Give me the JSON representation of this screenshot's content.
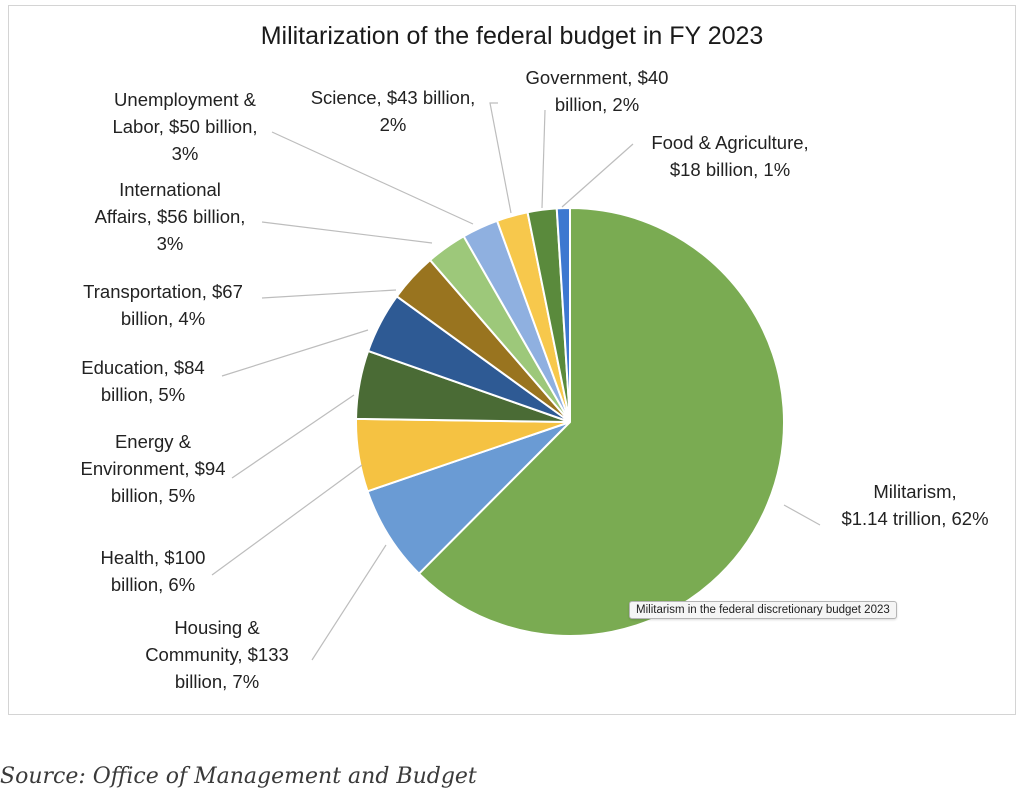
{
  "chart_data": {
    "type": "pie",
    "title": "Militarization of the federal budget in FY 2023",
    "slices": [
      {
        "name": "Militarism",
        "amount": "$1.14 trillion",
        "percent": 62,
        "value": 1140,
        "color": "#7aab52",
        "label_lines": [
          "Militarism,",
          "$1.14 trillion, 62%"
        ]
      },
      {
        "name": "Housing & Community",
        "amount": "$133 billion",
        "percent": 7,
        "value": 133,
        "color": "#6a9bd4",
        "label_lines": [
          "Housing &",
          "Community, $133",
          "billion, 7%"
        ]
      },
      {
        "name": "Health",
        "amount": "$100 billion",
        "percent": 6,
        "value": 100,
        "color": "#f5c242",
        "label_lines": [
          "Health, $100",
          "billion, 6%"
        ]
      },
      {
        "name": "Energy & Environment",
        "amount": "$94 billion",
        "percent": 5,
        "value": 94,
        "color": "#4a6b35",
        "label_lines": [
          "Energy &",
          "Environment, $94",
          "billion, 5%"
        ]
      },
      {
        "name": "Education",
        "amount": "$84 billion",
        "percent": 5,
        "value": 84,
        "color": "#2e5a94",
        "label_lines": [
          "Education, $84",
          "billion, 5%"
        ]
      },
      {
        "name": "Transportation",
        "amount": "$67 billion",
        "percent": 4,
        "value": 67,
        "color": "#99741f",
        "label_lines": [
          "Transportation, $67",
          "billion, 4%"
        ]
      },
      {
        "name": "International Affairs",
        "amount": "$56 billion",
        "percent": 3,
        "value": 56,
        "color": "#9dc87a",
        "label_lines": [
          "International",
          "Affairs, $56 billion,",
          "3%"
        ]
      },
      {
        "name": "Unemployment & Labor",
        "amount": "$50 billion",
        "percent": 3,
        "value": 50,
        "color": "#8fb0e0",
        "label_lines": [
          "Unemployment &",
          "Labor, $50 billion,",
          "3%"
        ]
      },
      {
        "name": "Science",
        "amount": "$43 billion",
        "percent": 2,
        "value": 43,
        "color": "#f7c84c",
        "label_lines": [
          "Science, $43 billion,",
          "2%"
        ]
      },
      {
        "name": "Government",
        "amount": "$40 billion",
        "percent": 2,
        "value": 40,
        "color": "#5a8a3c",
        "label_lines": [
          "Government, $40",
          "billion, 2%"
        ]
      },
      {
        "name": "Food & Agriculture",
        "amount": "$18 billion",
        "percent": 1,
        "value": 18,
        "color": "#3d78d0",
        "label_lines": [
          "Food & Agriculture,",
          "$18 billion, 1%"
        ]
      }
    ]
  },
  "tooltip": "Militarism in the federal discretionary budget 2023",
  "caption": "Source: Office of Management and Budget"
}
